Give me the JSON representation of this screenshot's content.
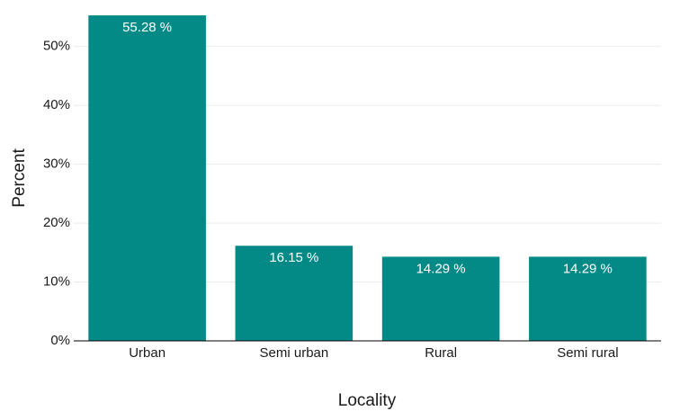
{
  "chart_data": {
    "type": "bar",
    "x_label": "Locality",
    "y_label": "Percent",
    "categories": [
      "Urban",
      "Semi urban",
      "Rural",
      "Semi rural"
    ],
    "values": [
      55.28,
      16.15,
      14.29,
      14.29
    ],
    "value_labels": [
      "55.28 %",
      "16.15 %",
      "14.29 %",
      "14.29 %"
    ],
    "color": "#048a86",
    "ylim": [
      0,
      55.6
    ],
    "yticks": [
      {
        "value": 0,
        "label": "0%"
      },
      {
        "value": 10,
        "label": "10%"
      },
      {
        "value": 20,
        "label": "20%"
      },
      {
        "value": 30,
        "label": "30%"
      },
      {
        "value": 40,
        "label": "40%"
      },
      {
        "value": 50,
        "label": "50%"
      }
    ],
    "grid": true
  }
}
